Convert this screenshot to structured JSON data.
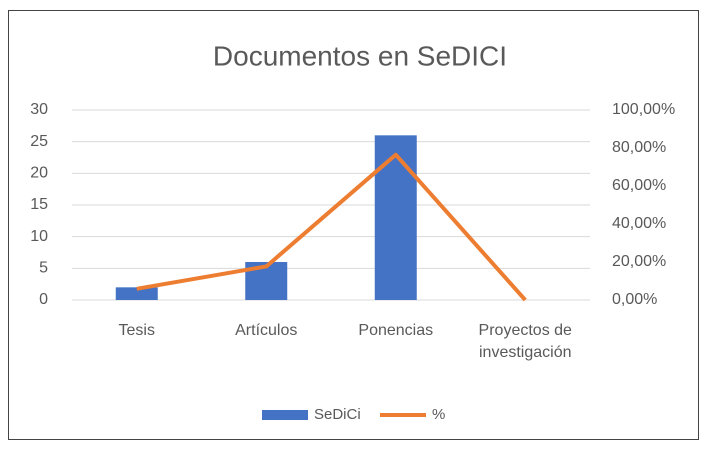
{
  "chart_data": {
    "type": "bar",
    "title": "Documentos en SeDICI",
    "categories": [
      "Tesis",
      "Artículos",
      "Ponencias",
      "Proyectos de investigación"
    ],
    "series": [
      {
        "name": "SeDiCi",
        "color": "#4472c4",
        "values": [
          2,
          6,
          26,
          0
        ]
      },
      {
        "name": "%",
        "type": "line",
        "axis": "y2",
        "color": "#ed7d31",
        "values": [
          5.88,
          17.65,
          76.47,
          0
        ]
      }
    ],
    "ylim": [
      0,
      30
    ],
    "yticks": [
      0,
      5,
      10,
      15,
      20,
      25,
      30
    ],
    "y2lim": [
      0,
      100
    ],
    "y2ticks": [
      {
        "value": 0,
        "label": "0,00%"
      },
      {
        "value": 20,
        "label": "20,00%"
      },
      {
        "value": 40,
        "label": "40,00%"
      },
      {
        "value": 60,
        "label": "60,00%"
      },
      {
        "value": 80,
        "label": "80,00%"
      },
      {
        "value": 100,
        "label": "100,00%"
      }
    ],
    "grid": true,
    "legend": "bottom"
  }
}
